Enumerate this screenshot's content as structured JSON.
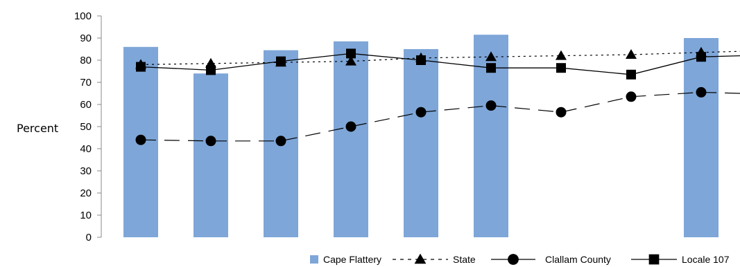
{
  "chart_data": {
    "type": "bar",
    "ylabel": "Percent",
    "ylim": [
      0,
      100
    ],
    "yticks": [
      0,
      10,
      20,
      30,
      40,
      50,
      60,
      70,
      80,
      90,
      100
    ],
    "grid": false,
    "legend_position": "bottom-right",
    "x": [
      1,
      2,
      3,
      4,
      5,
      6,
      7,
      8,
      9,
      10
    ],
    "series": [
      {
        "name": "Cape Flattery",
        "kind": "bar",
        "color": "#7ea6d8",
        "values": [
          86,
          74,
          84.5,
          88.5,
          85,
          91.5,
          null,
          null,
          90,
          null
        ]
      },
      {
        "name": "State",
        "kind": "line",
        "line_style": "dotted",
        "marker": "triangle",
        "color": "#000000",
        "values": [
          78,
          78.5,
          79,
          79.5,
          81,
          81.5,
          82,
          82.5,
          83.5,
          84
        ]
      },
      {
        "name": "Clallam County",
        "kind": "line",
        "line_style": "dashed",
        "marker": "circle",
        "color": "#000000",
        "values": [
          44,
          43.5,
          43.5,
          50,
          56.5,
          59.5,
          56.5,
          63.5,
          65.5,
          65
        ]
      },
      {
        "name": "Locale 107",
        "kind": "line",
        "line_style": "solid",
        "marker": "square",
        "color": "#000000",
        "values": [
          77,
          75.5,
          79.5,
          83,
          80,
          76.5,
          76.5,
          73.5,
          81.5,
          82
        ]
      }
    ]
  }
}
